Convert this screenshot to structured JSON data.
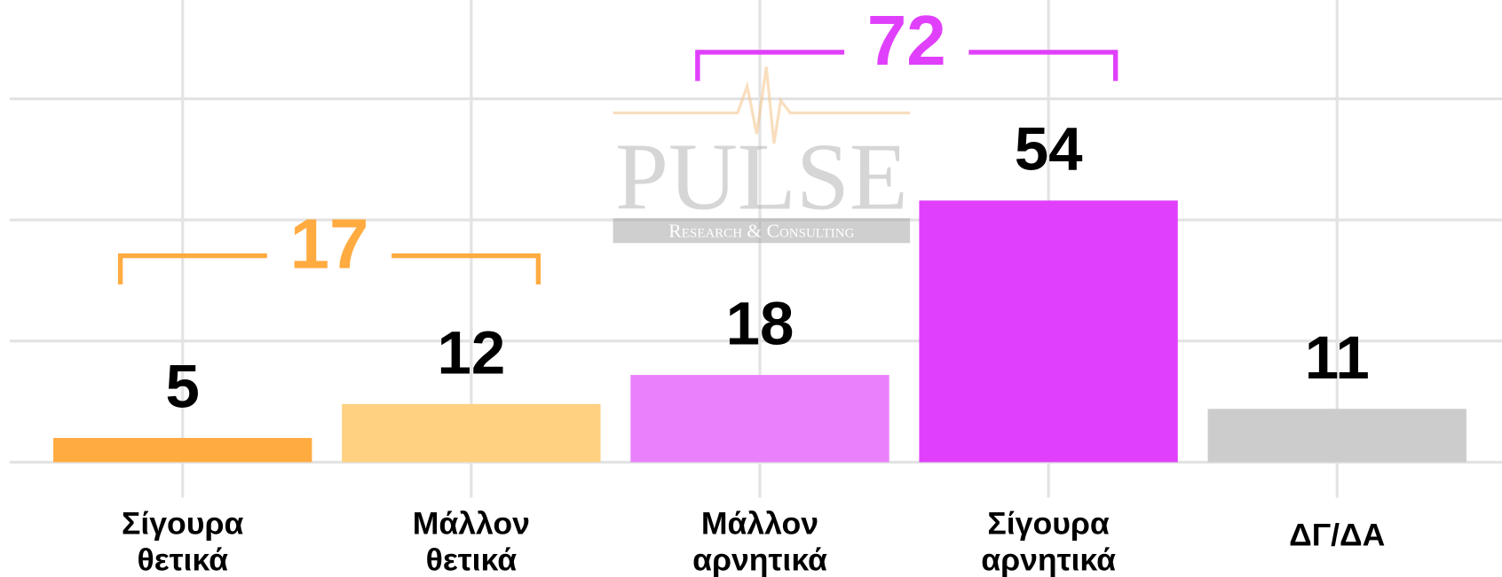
{
  "chart_data": {
    "type": "bar",
    "categories": [
      "Σίγουρα θετικά",
      "Μάλλον θετικά",
      "Μάλλον αρνητικά",
      "Σίγουρα αρνητικά",
      "ΔΓ/ΔΑ"
    ],
    "values": [
      5,
      12,
      18,
      54,
      11
    ],
    "colors": [
      "#ffab40",
      "#ffd180",
      "#ea80fc",
      "#e040fb",
      "#cccccc"
    ],
    "ylim": [
      0,
      95
    ],
    "yticks": [
      0,
      25,
      50,
      75
    ],
    "grid": true,
    "brackets": [
      {
        "value": 17,
        "from": 0,
        "to": 1,
        "color": "#ffab40"
      },
      {
        "value": 72,
        "from": 2,
        "to": 3,
        "color": "#e040fb"
      }
    ],
    "watermark": {
      "title": "PULSE",
      "subtitle": "Research & Consulting"
    }
  }
}
